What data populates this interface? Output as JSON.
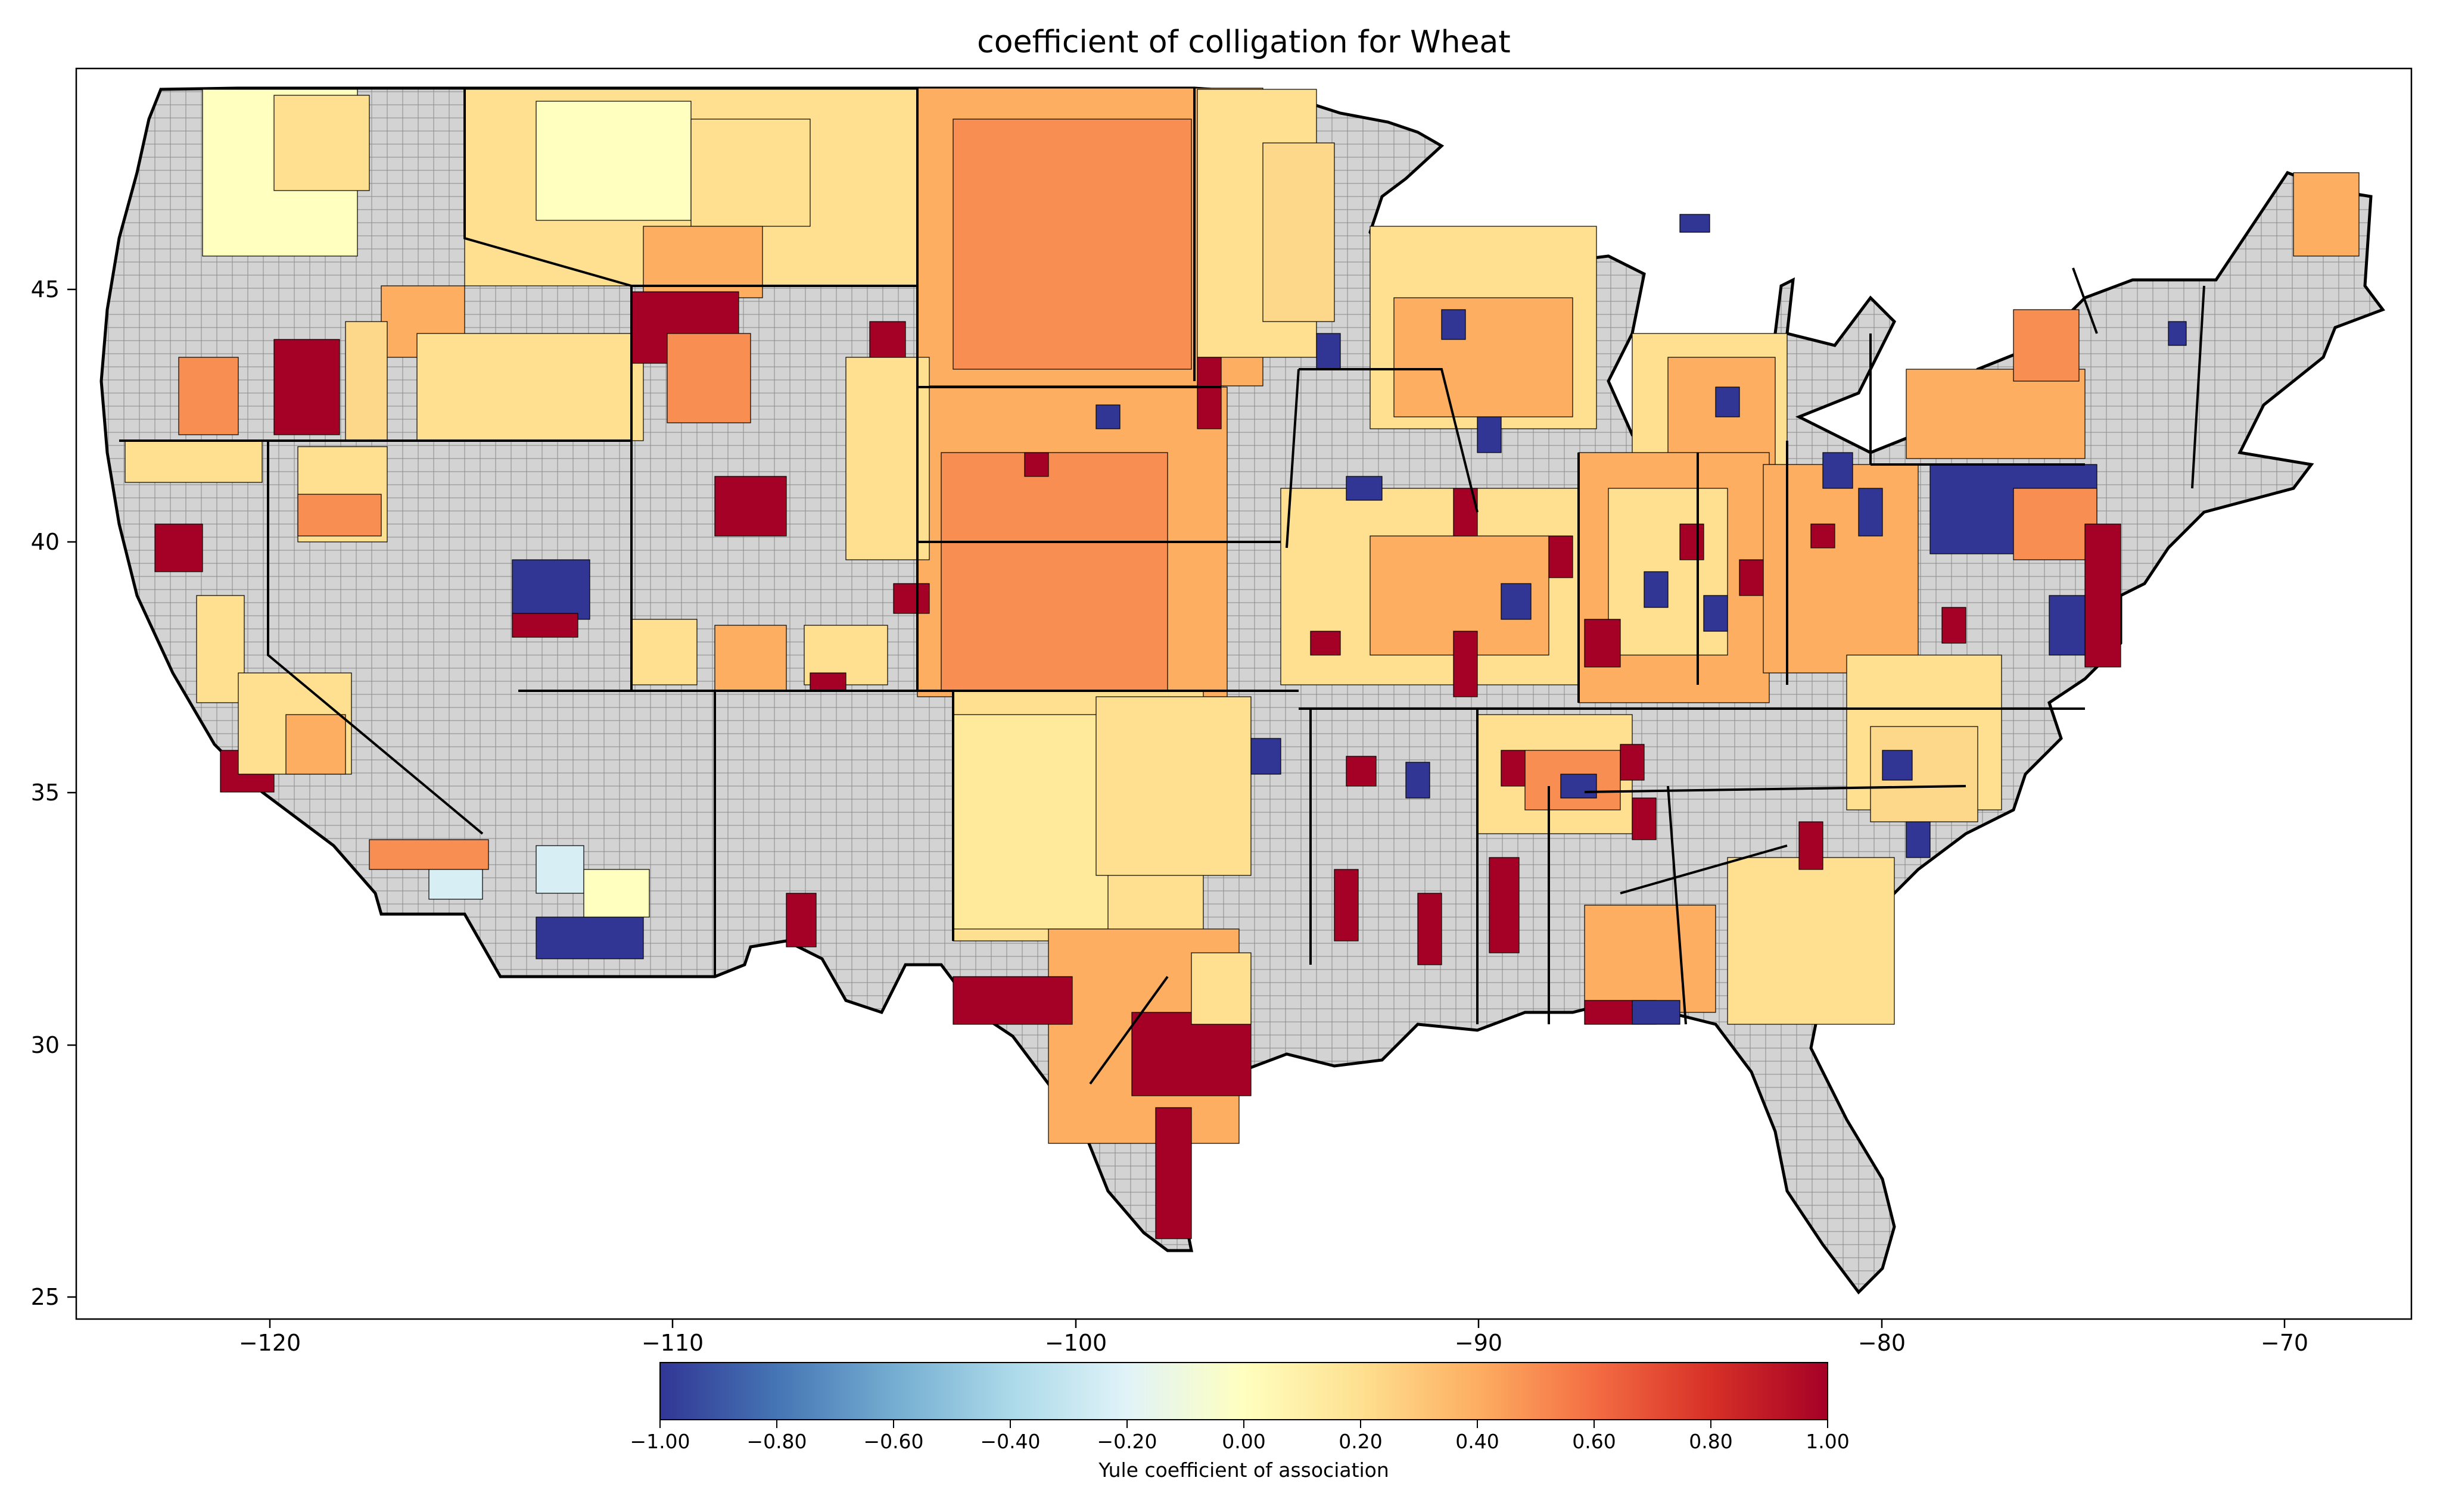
{
  "title": "coefficient of colligation for Wheat",
  "x_ticks": [
    "−120",
    "−110",
    "−100",
    "−90",
    "−80",
    "−70"
  ],
  "y_ticks": [
    "45",
    "40",
    "35",
    "30",
    "25"
  ],
  "colorbar": {
    "label": "Yule coefficient of association",
    "ticks": [
      "−1.00",
      "−0.80",
      "−0.60",
      "−0.40",
      "−0.20",
      "0.00",
      "0.20",
      "0.40",
      "0.60",
      "0.80",
      "1.00"
    ],
    "colormap": "RdYlBu_r",
    "range": [
      -1,
      1
    ]
  },
  "map": {
    "lon_range": [
      -124.8,
      -66.8
    ],
    "lat_range": [
      24.4,
      49.4
    ],
    "no_data_color": "#d3d3d3",
    "edge_color": "#000000"
  },
  "colors": {
    "dark_blue": "#313695",
    "light_blue": "#d7eef5",
    "pale_yellow": "#ffffbf",
    "light_orange": "#fee090",
    "orange": "#fdae61",
    "dark_orange": "#f88e52",
    "dark_red": "#a50026",
    "grey": "#d3d3d3"
  }
}
